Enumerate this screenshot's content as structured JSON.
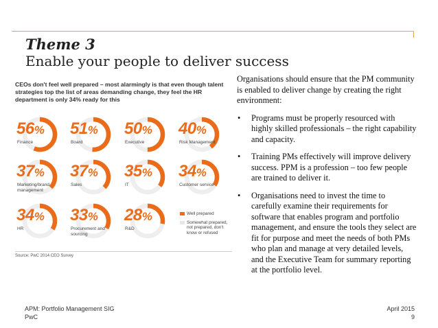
{
  "header": {
    "theme": "Theme 3",
    "subtitle": "Enable your people to deliver success"
  },
  "infographic": {
    "heading": "CEOs don't feel well prepared – most alarmingly is that even though talent strategies top the list of areas demanding change, they feel the HR department is only 34% ready for this",
    "items": [
      {
        "value": "56",
        "suffix": "%",
        "label": "Finance",
        "fraction": 0.56
      },
      {
        "value": "51",
        "suffix": "%",
        "label": "Board",
        "fraction": 0.51
      },
      {
        "value": "50",
        "suffix": "%",
        "label": "Executive",
        "fraction": 0.5
      },
      {
        "value": "40",
        "suffix": "%",
        "label": "Risk Management",
        "fraction": 0.4
      },
      {
        "value": "37",
        "suffix": "%",
        "label": "Marketing/brand management",
        "fraction": 0.37
      },
      {
        "value": "37",
        "suffix": "%",
        "label": "Sales",
        "fraction": 0.37
      },
      {
        "value": "35",
        "suffix": "%",
        "label": "IT",
        "fraction": 0.35
      },
      {
        "value": "34",
        "suffix": "%",
        "label": "Customer service",
        "fraction": 0.34
      },
      {
        "value": "34",
        "suffix": "%",
        "label": "HR",
        "fraction": 0.34
      },
      {
        "value": "33",
        "suffix": "%",
        "label": "Procurement and sourcing",
        "fraction": 0.33
      },
      {
        "value": "28",
        "suffix": "%",
        "label": "R&D",
        "fraction": 0.28
      }
    ],
    "legend": {
      "prepared": "Well prepared",
      "not_prepared": "Somewhat prepared, not prepared, don't know or refused"
    },
    "source": "Source: PwC 2014 CEO Survey",
    "colors": {
      "accent": "#ea6b1a",
      "track": "#eeeeee"
    }
  },
  "body": {
    "intro": "Organisations should ensure that the PM community is enabled to deliver change by creating the right environment:",
    "bullet_symbol": "•",
    "bullets": [
      "Programs must be properly resourced with highly skilled professionals – the right capability and capacity.",
      "Training PMs effectively will improve delivery success. PPM is a profession – too few people are trained to deliver it.",
      "Organisations need to invest the time to carefully examine their requirements for software that enables program and portfolio management, and ensure the tools they select are fit for purpose and meet the needs of both PMs who plan and manage at very detailed levels, and the Executive Team for summary reporting at the portfolio level."
    ]
  },
  "footer": {
    "org": "APM: Portfolio Management SIG",
    "company": "PwC",
    "date": "April 2015",
    "page": "9"
  }
}
